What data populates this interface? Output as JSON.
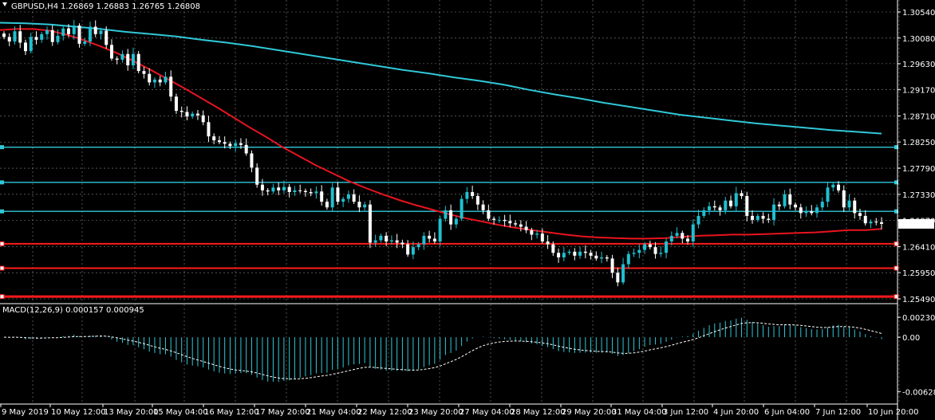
{
  "header": {
    "symbol": "GBPUSD,H4",
    "ohlc": "1.26869 1.26883 1.26765 1.26808"
  },
  "colors": {
    "background": "#000000",
    "grid": "#c0c0c0",
    "bull_candle": "#20c0d0",
    "bear_candle": "#ffffff",
    "ma_fast": "#e8141e",
    "ma_slow": "#30c8d8",
    "hline_cyan": "#30c8d8",
    "hline_red": "#ff1a1a",
    "macd_hist": "#30c8d8",
    "macd_signal": "#ffffff",
    "price_tag_bg": "#ffffff",
    "price_tag_text": "#000000"
  },
  "chart_data": [
    {
      "type": "candlestick",
      "title": "GBPUSD,H4",
      "ylim": [
        1.2549,
        1.3054
      ],
      "y_ticks": [
        "1.30540",
        "1.30080",
        "1.29630",
        "1.29170",
        "1.28710",
        "1.28250",
        "1.27790",
        "1.27330",
        "1.26870",
        "1.26410",
        "1.25950",
        "1.25490"
      ],
      "x_ticks": [
        "9 May 2019",
        "10 May 12:00",
        "13 May 20:00",
        "15 May 04:00",
        "16 May 12:00",
        "17 May 20:00",
        "21 May 04:00",
        "22 May 12:00",
        "23 May 20:00",
        "27 May 04:00",
        "28 May 12:00",
        "29 May 20:00",
        "31 May 04:00",
        "3 Jun 12:00",
        "4 Jun 20:00",
        "6 Jun 04:00",
        "7 Jun 12:00",
        "10 Jun 20:00"
      ],
      "current_price": "1.26808",
      "closes": [
        1.301,
        1.3002,
        1.302,
        1.3,
        1.2985,
        1.301,
        1.3005,
        1.3015,
        1.3022,
        1.3001,
        1.3012,
        1.3025,
        1.3015,
        1.303,
        1.2998,
        1.3002,
        1.3028,
        1.3015,
        1.3021,
        1.2996,
        1.2972,
        1.297,
        1.298,
        1.296,
        1.298,
        1.295,
        1.2945,
        1.293,
        1.2935,
        1.293,
        1.294,
        1.2905,
        1.288,
        1.2878,
        1.287,
        1.2875,
        1.2872,
        1.286,
        1.2835,
        1.2828,
        1.2825,
        1.2822,
        1.2818,
        1.2823,
        1.282,
        1.2805,
        1.278,
        1.275,
        1.274,
        1.2738,
        1.2745,
        1.274,
        1.2746,
        1.2737,
        1.274,
        1.2739,
        1.2737,
        1.2735,
        1.2738,
        1.272,
        1.271,
        1.2745,
        1.272,
        1.2725,
        1.2733,
        1.272,
        1.271,
        1.2715,
        1.2648,
        1.2652,
        1.266,
        1.265,
        1.2652,
        1.2648,
        1.2645,
        1.2627,
        1.264,
        1.2645,
        1.266,
        1.2655,
        1.265,
        1.269,
        1.2705,
        1.268,
        1.269,
        1.2725,
        1.2737,
        1.273,
        1.2715,
        1.2705,
        1.269,
        1.2688,
        1.2688,
        1.2686,
        1.2682,
        1.268,
        1.2676,
        1.267,
        1.2662,
        1.2664,
        1.265,
        1.2645,
        1.263,
        1.2622,
        1.263,
        1.2632,
        1.2625,
        1.2632,
        1.263,
        1.2625,
        1.262,
        1.2622,
        1.262,
        1.2595,
        1.2578,
        1.261,
        1.2628,
        1.263,
        1.2635,
        1.2645,
        1.264,
        1.2628,
        1.263,
        1.265,
        1.266,
        1.2665,
        1.2655,
        1.265,
        1.268,
        1.2695,
        1.2705,
        1.2712,
        1.271,
        1.2705,
        1.2722,
        1.2712,
        1.2735,
        1.273,
        1.2695,
        1.2688,
        1.2695,
        1.269,
        1.2688,
        1.2715,
        1.2712,
        1.2733,
        1.2715,
        1.271,
        1.27,
        1.2703,
        1.27,
        1.271,
        1.272,
        1.2745,
        1.275,
        1.274,
        1.271,
        1.2722,
        1.27,
        1.2695,
        1.2682,
        1.2685,
        1.2684,
        1.2681
      ],
      "ma_fast": [
        1.3022,
        1.3024,
        1.3024,
        1.3021,
        1.3014,
        1.3005,
        1.2994,
        1.2982,
        1.2968,
        1.2953,
        1.2937,
        1.2921,
        1.2904,
        1.2887,
        1.2869,
        1.2851,
        1.2834,
        1.2816,
        1.28,
        1.2784,
        1.277,
        1.2756,
        1.2744,
        1.2733,
        1.2723,
        1.2714,
        1.2706,
        1.2698,
        1.2691,
        1.2685,
        1.2679,
        1.2674,
        1.267,
        1.2666,
        1.2662,
        1.2659,
        1.2657,
        1.2656,
        1.2655,
        1.2655,
        1.2656,
        1.2658,
        1.266,
        1.2661,
        1.2662,
        1.2662,
        1.2663,
        1.2664,
        1.2665,
        1.2666,
        1.2668,
        1.267,
        1.267,
        1.2672
      ],
      "ma_slow": [
        1.3035,
        1.3034,
        1.3032,
        1.3028,
        1.3024,
        1.3019,
        1.3015,
        1.3011,
        1.3005,
        1.3,
        1.2994,
        1.2987,
        1.298,
        1.2973,
        1.2966,
        1.2959,
        1.2952,
        1.2946,
        1.2939,
        1.2933,
        1.2926,
        1.2917,
        1.2909,
        1.2902,
        1.2894,
        1.2887,
        1.288,
        1.2873,
        1.2868,
        1.2863,
        1.2858,
        1.2854,
        1.285,
        1.2846,
        1.2843,
        1.284
      ],
      "support_resistance_cyan": [
        1.2816,
        1.2754,
        1.2703
      ],
      "support_resistance_red": [
        1.2646,
        1.2603,
        1.2553
      ]
    },
    {
      "type": "histogram+line",
      "title": "MACD(12,26,9) 0.000157 0.000945",
      "ylim": [
        -0.00681,
        0.00305
      ],
      "y_ticks": [
        "0.002305",
        "0.00",
        "-0.006281"
      ]
    }
  ]
}
